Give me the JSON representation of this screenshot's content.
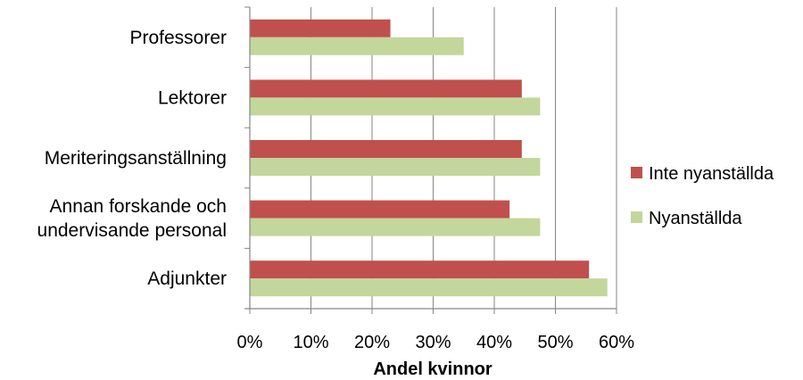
{
  "chart_data": {
    "type": "bar",
    "orientation": "horizontal",
    "categories": [
      [
        "Professorer"
      ],
      [
        "Lektorer"
      ],
      [
        "Meriteringsanställning"
      ],
      [
        "Annan forskande och",
        "undervisande personal"
      ],
      [
        "Adjunkter"
      ]
    ],
    "series": [
      {
        "name": "Inte nyanställda",
        "color": "#c0504d",
        "values": [
          23,
          44.5,
          44.5,
          42.5,
          55.5
        ]
      },
      {
        "name": "Nyanställda",
        "color": "#c3d69b",
        "values": [
          35,
          47.5,
          47.5,
          47.5,
          58.5
        ]
      }
    ],
    "xlabel": "Andel kvinnor",
    "xlim": [
      0,
      60
    ],
    "xticks": [
      "0%",
      "10%",
      "20%",
      "30%",
      "40%",
      "50%",
      "60%"
    ],
    "grid": true,
    "legend": "right"
  }
}
